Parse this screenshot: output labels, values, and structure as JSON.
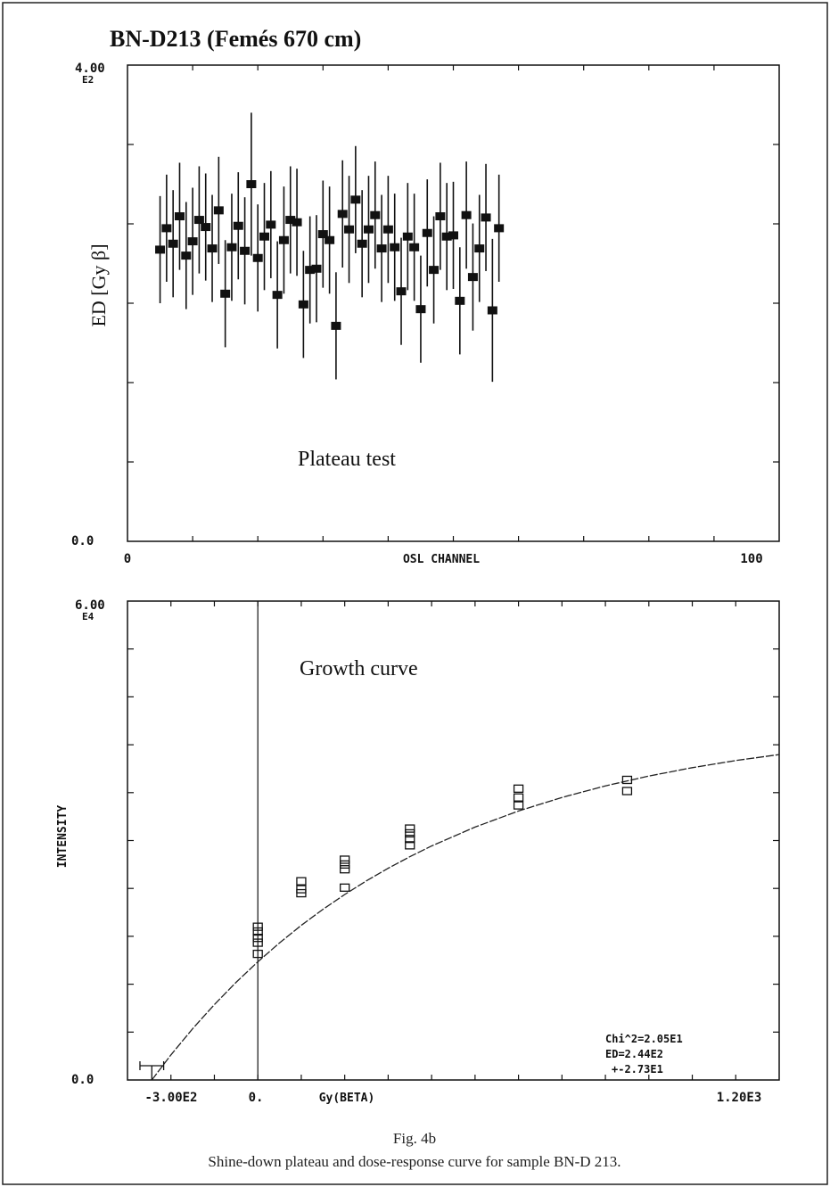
{
  "page_title": "BN-D213 (Femés 670 cm)",
  "caption": {
    "figure": "Fig. 4b",
    "text": "Shine-down plateau and dose-response curve for sample BN-D 213."
  },
  "chart_data": [
    {
      "type": "scatter",
      "annotation": "Plateau test",
      "xlabel": "OSL CHANNEL",
      "ylabel": "ED [Gy β]",
      "xlim": [
        0,
        100
      ],
      "ylim": [
        0,
        400
      ],
      "x_tick_labels": [
        "0",
        "100"
      ],
      "y_tick_labels": [
        "0.0",
        "4.00",
        "E2"
      ],
      "points": [
        {
          "x": 5,
          "y": 245,
          "err": 45
        },
        {
          "x": 6,
          "y": 263,
          "err": 45
        },
        {
          "x": 7,
          "y": 250,
          "err": 45
        },
        {
          "x": 8,
          "y": 273,
          "err": 45
        },
        {
          "x": 9,
          "y": 240,
          "err": 45
        },
        {
          "x": 10,
          "y": 252,
          "err": 45
        },
        {
          "x": 11,
          "y": 270,
          "err": 45
        },
        {
          "x": 12,
          "y": 264,
          "err": 45
        },
        {
          "x": 13,
          "y": 246,
          "err": 45
        },
        {
          "x": 14,
          "y": 278,
          "err": 45
        },
        {
          "x": 15,
          "y": 208,
          "err": 45
        },
        {
          "x": 16,
          "y": 247,
          "err": 45
        },
        {
          "x": 17,
          "y": 265,
          "err": 45
        },
        {
          "x": 18,
          "y": 244,
          "err": 45
        },
        {
          "x": 19,
          "y": 300,
          "err": 60
        },
        {
          "x": 20,
          "y": 238,
          "err": 45
        },
        {
          "x": 21,
          "y": 256,
          "err": 45
        },
        {
          "x": 22,
          "y": 266,
          "err": 45
        },
        {
          "x": 23,
          "y": 207,
          "err": 45
        },
        {
          "x": 24,
          "y": 253,
          "err": 45
        },
        {
          "x": 25,
          "y": 270,
          "err": 45
        },
        {
          "x": 26,
          "y": 268,
          "err": 45
        },
        {
          "x": 27,
          "y": 199,
          "err": 45
        },
        {
          "x": 28,
          "y": 228,
          "err": 45
        },
        {
          "x": 29,
          "y": 229,
          "err": 45
        },
        {
          "x": 30,
          "y": 258,
          "err": 45
        },
        {
          "x": 31,
          "y": 253,
          "err": 45
        },
        {
          "x": 32,
          "y": 181,
          "err": 45
        },
        {
          "x": 33,
          "y": 275,
          "err": 45
        },
        {
          "x": 34,
          "y": 262,
          "err": 45
        },
        {
          "x": 35,
          "y": 287,
          "err": 45
        },
        {
          "x": 36,
          "y": 250,
          "err": 45
        },
        {
          "x": 37,
          "y": 262,
          "err": 45
        },
        {
          "x": 38,
          "y": 274,
          "err": 45
        },
        {
          "x": 39,
          "y": 246,
          "err": 45
        },
        {
          "x": 40,
          "y": 262,
          "err": 45
        },
        {
          "x": 41,
          "y": 247,
          "err": 45
        },
        {
          "x": 42,
          "y": 210,
          "err": 45
        },
        {
          "x": 43,
          "y": 256,
          "err": 45
        },
        {
          "x": 44,
          "y": 247,
          "err": 45
        },
        {
          "x": 45,
          "y": 195,
          "err": 45
        },
        {
          "x": 46,
          "y": 259,
          "err": 45
        },
        {
          "x": 47,
          "y": 228,
          "err": 45
        },
        {
          "x": 48,
          "y": 273,
          "err": 45
        },
        {
          "x": 49,
          "y": 256,
          "err": 45
        },
        {
          "x": 50,
          "y": 257,
          "err": 45
        },
        {
          "x": 51,
          "y": 202,
          "err": 45
        },
        {
          "x": 52,
          "y": 274,
          "err": 45
        },
        {
          "x": 53,
          "y": 222,
          "err": 45
        },
        {
          "x": 54,
          "y": 246,
          "err": 45
        },
        {
          "x": 55,
          "y": 272,
          "err": 45
        },
        {
          "x": 56,
          "y": 194,
          "err": 60
        },
        {
          "x": 57,
          "y": 263,
          "err": 45
        }
      ]
    },
    {
      "type": "scatter",
      "annotation": "Growth curve",
      "xlabel": "Gy(BETA)",
      "ylabel": "INTENSITY",
      "xlim": [
        -300,
        1200
      ],
      "ylim": [
        0,
        60000
      ],
      "x_tick_labels": [
        "-3.00E2",
        "0.",
        "1.20E3"
      ],
      "y_tick_labels": [
        "0.0",
        "6.00",
        "E4"
      ],
      "fit_text": [
        "Chi^2=2.05E1",
        "ED=2.44E2",
        "+-2.73E1"
      ],
      "points": [
        {
          "x": 0,
          "y": 19200
        },
        {
          "x": 0,
          "y": 18600
        },
        {
          "x": 0,
          "y": 17800
        },
        {
          "x": 0,
          "y": 17200
        },
        {
          "x": 0,
          "y": 15800
        },
        {
          "x": 100,
          "y": 24900
        },
        {
          "x": 100,
          "y": 23900
        },
        {
          "x": 100,
          "y": 23400
        },
        {
          "x": 200,
          "y": 27600
        },
        {
          "x": 200,
          "y": 27000
        },
        {
          "x": 200,
          "y": 26400
        },
        {
          "x": 200,
          "y": 24100
        },
        {
          "x": 350,
          "y": 31500
        },
        {
          "x": 350,
          "y": 30900
        },
        {
          "x": 350,
          "y": 30200
        },
        {
          "x": 350,
          "y": 29400
        },
        {
          "x": 600,
          "y": 36500
        },
        {
          "x": 600,
          "y": 35400
        },
        {
          "x": 600,
          "y": 34400
        },
        {
          "x": 850,
          "y": 37600
        },
        {
          "x": 850,
          "y": 36200
        }
      ],
      "fit_curve": [
        {
          "x": -244,
          "y": 0
        },
        {
          "x": -200,
          "y": 3140
        },
        {
          "x": -150,
          "y": 6420
        },
        {
          "x": -100,
          "y": 9450
        },
        {
          "x": -50,
          "y": 12240
        },
        {
          "x": 0,
          "y": 14810
        },
        {
          "x": 50,
          "y": 17180
        },
        {
          "x": 100,
          "y": 19370
        },
        {
          "x": 150,
          "y": 21380
        },
        {
          "x": 200,
          "y": 23240
        },
        {
          "x": 250,
          "y": 24950
        },
        {
          "x": 300,
          "y": 26520
        },
        {
          "x": 350,
          "y": 27980
        },
        {
          "x": 400,
          "y": 29320
        },
        {
          "x": 500,
          "y": 31690
        },
        {
          "x": 600,
          "y": 33700
        },
        {
          "x": 700,
          "y": 35400
        },
        {
          "x": 800,
          "y": 36850
        },
        {
          "x": 900,
          "y": 38080
        },
        {
          "x": 1000,
          "y": 39130
        },
        {
          "x": 1100,
          "y": 40020
        },
        {
          "x": 1200,
          "y": 40770
        }
      ],
      "ed_error_bar": {
        "x": -244,
        "xerr": 27.3,
        "y": 0
      }
    }
  ]
}
